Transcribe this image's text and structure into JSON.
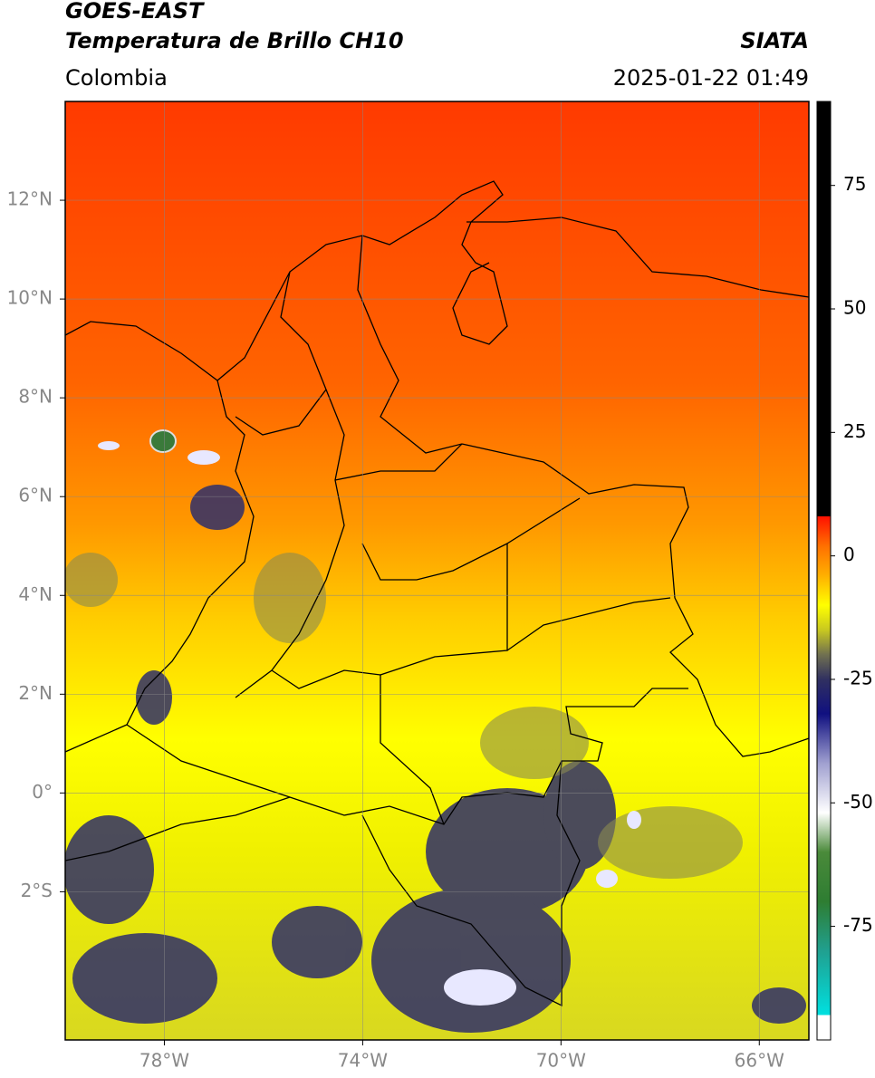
{
  "header": {
    "title": "GOES-EAST",
    "subtitle": "Temperatura de Brillo CH10",
    "brand": "SIATA",
    "region": "Colombia",
    "datetime": "2025-01-22 01:49"
  },
  "map": {
    "lonlim": [
      -80,
      -65
    ],
    "latlim": [
      -5,
      14
    ],
    "xticks": [
      {
        "value": -78,
        "label": "78°W"
      },
      {
        "value": -74,
        "label": "74°W"
      },
      {
        "value": -70,
        "label": "70°W"
      },
      {
        "value": -66,
        "label": "66°W"
      }
    ],
    "yticks": [
      {
        "value": 12,
        "label": "12°N"
      },
      {
        "value": 10,
        "label": "10°N"
      },
      {
        "value": 8,
        "label": "8°N"
      },
      {
        "value": 6,
        "label": "6°N"
      },
      {
        "value": 4,
        "label": "4°N"
      },
      {
        "value": 2,
        "label": "2°N"
      },
      {
        "value": 0,
        "label": "0°"
      },
      {
        "value": -2,
        "label": "2°S"
      }
    ],
    "grid": true
  },
  "colorbar": {
    "lim": [
      -98,
      92
    ],
    "ticks": [
      75,
      50,
      25,
      0,
      -25,
      -50,
      -75
    ],
    "stops": [
      {
        "value": -98,
        "color": "#ffffff"
      },
      {
        "value": -93,
        "color": "#ffffff"
      },
      {
        "value": -93,
        "color": "#00e0e0"
      },
      {
        "value": -80,
        "color": "#20a090"
      },
      {
        "value": -70,
        "color": "#2e7d32"
      },
      {
        "value": -60,
        "color": "#4a8a3a"
      },
      {
        "value": -52,
        "color": "#ffffff"
      },
      {
        "value": -42,
        "color": "#a0a0d0"
      },
      {
        "value": -32,
        "color": "#101080"
      },
      {
        "value": -25,
        "color": "#303060"
      },
      {
        "value": -20,
        "color": "#707050"
      },
      {
        "value": -15,
        "color": "#c8c820"
      },
      {
        "value": -10,
        "color": "#ffff00"
      },
      {
        "value": -4,
        "color": "#ffb000"
      },
      {
        "value": 2,
        "color": "#ff7000"
      },
      {
        "value": 8,
        "color": "#ff1000"
      },
      {
        "value": 8,
        "color": "#000000"
      },
      {
        "value": 92,
        "color": "#000000"
      }
    ]
  }
}
